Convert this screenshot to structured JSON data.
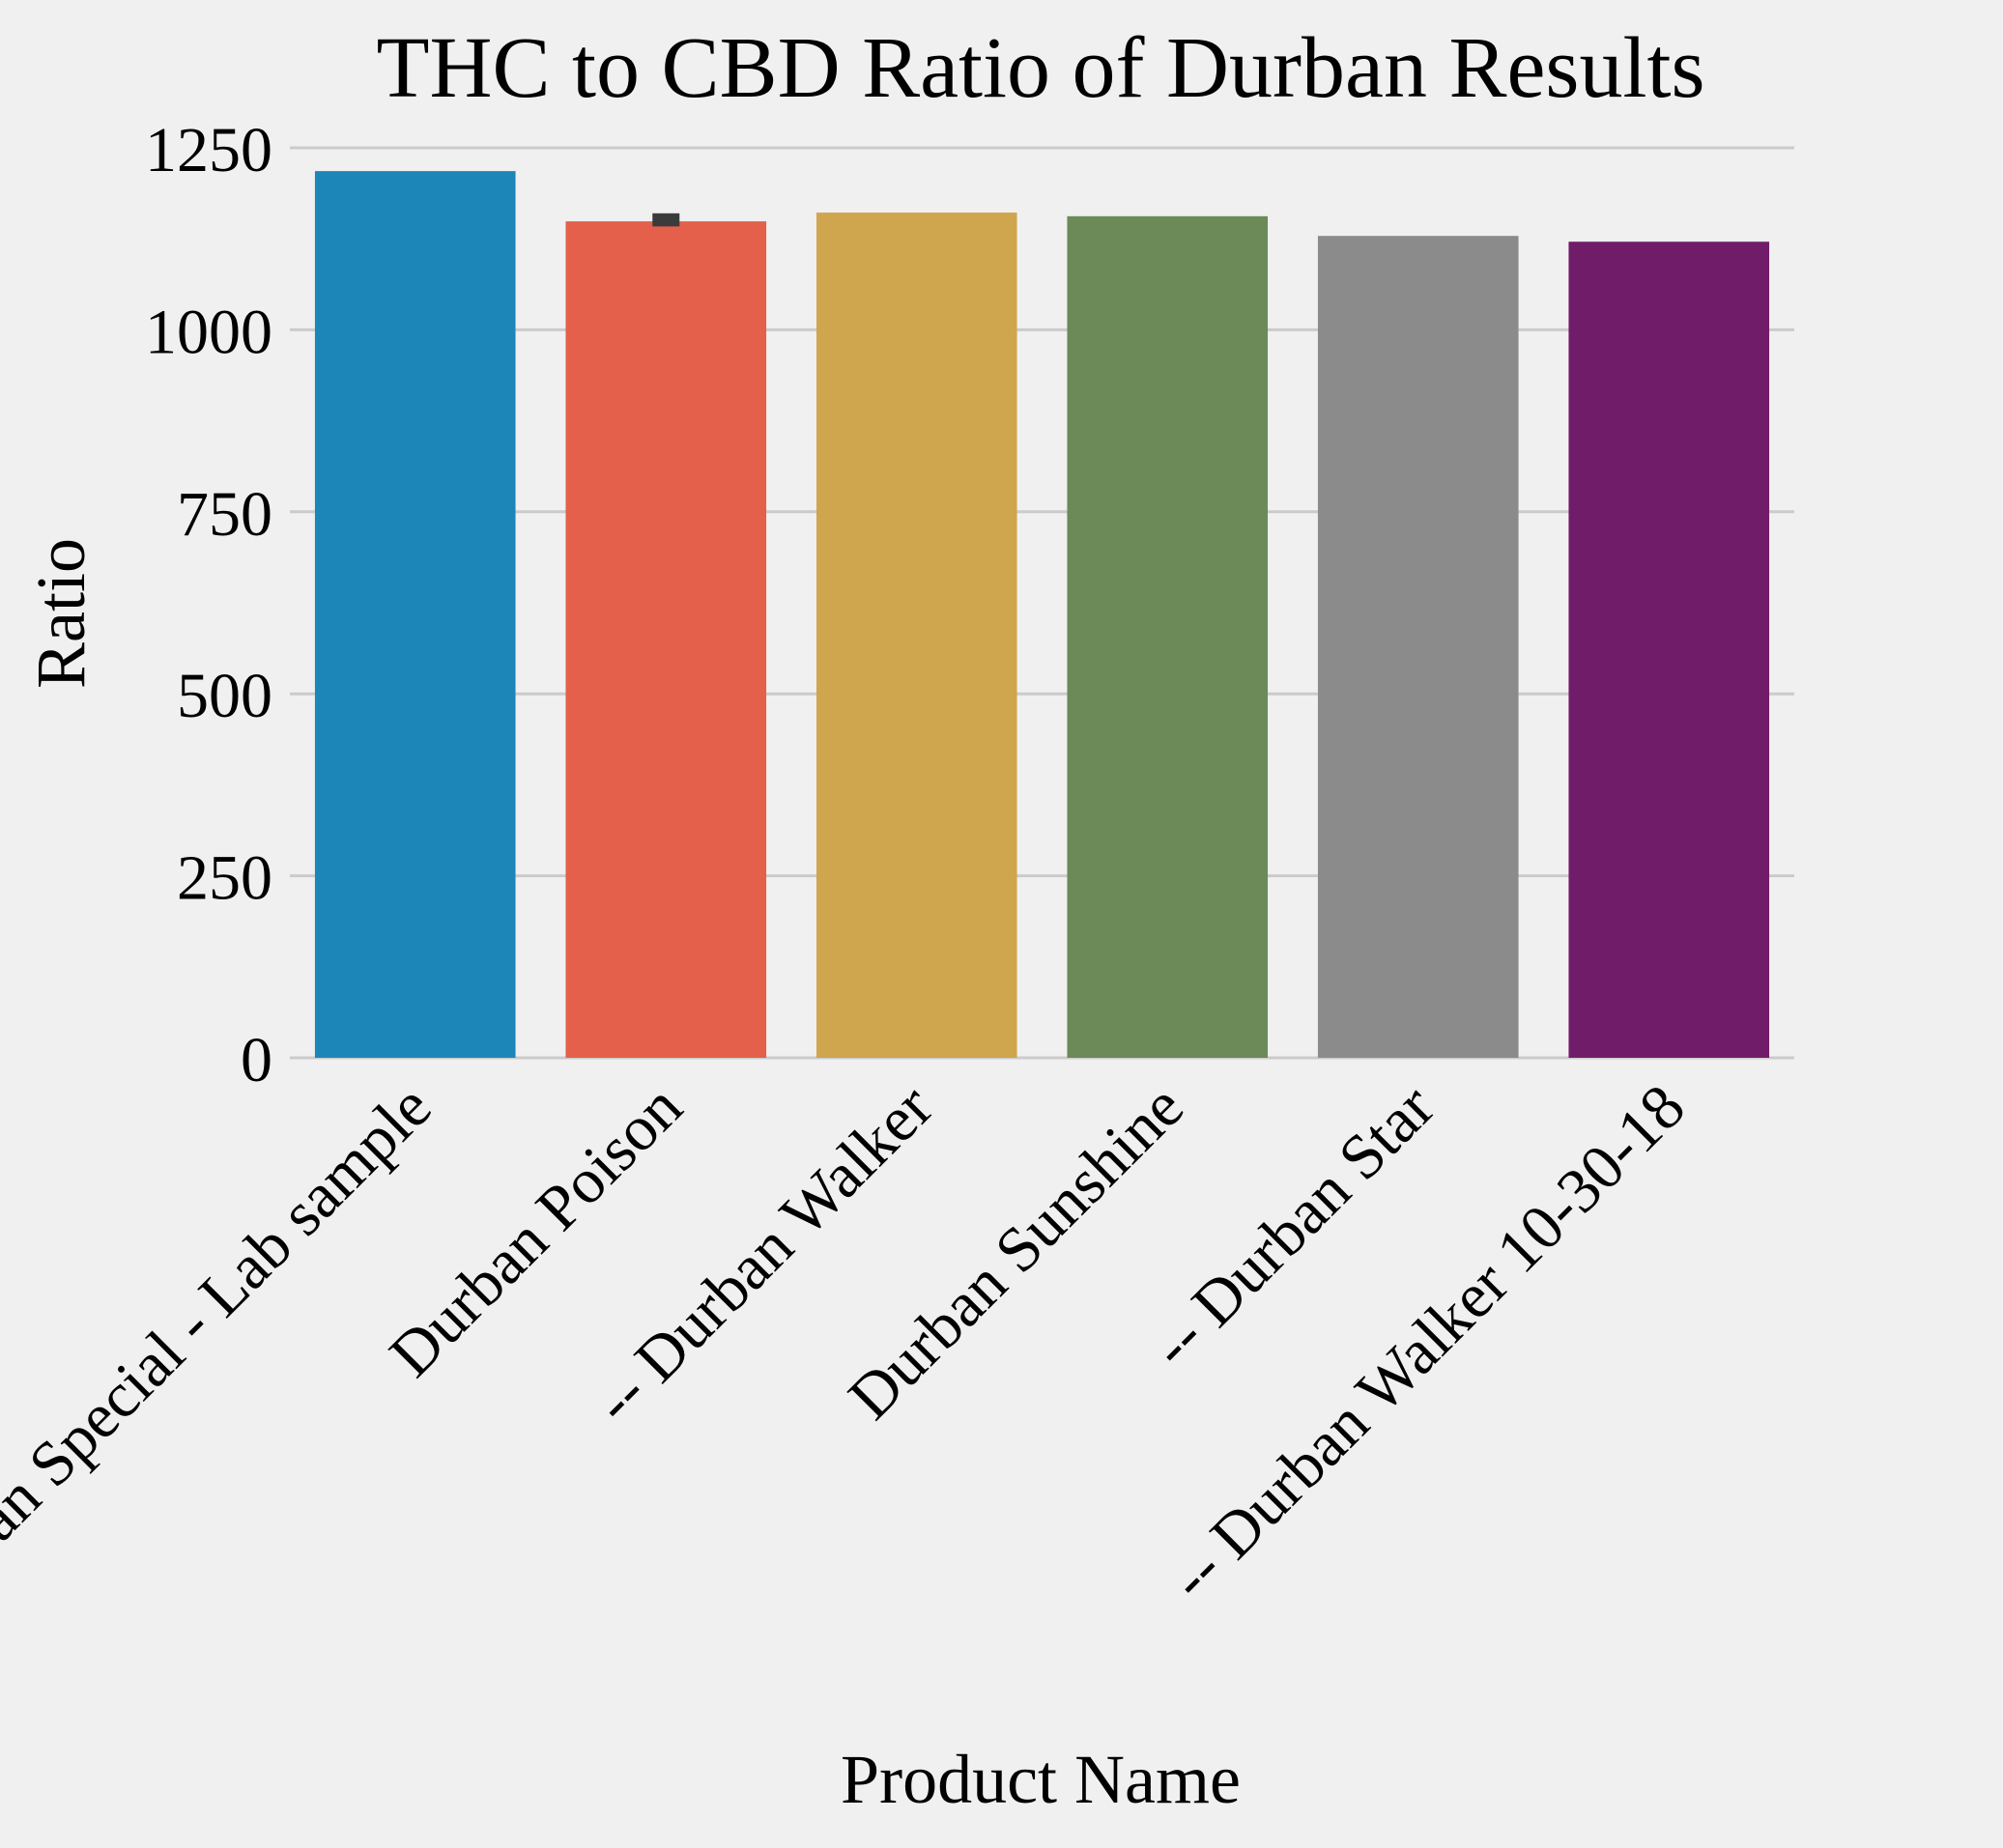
{
  "chart_data": {
    "type": "bar",
    "title": "THC to CBD Ratio of Durban Results",
    "xlabel": "Product Name",
    "ylabel": "Ratio",
    "categories": [
      "Durban Special - Lab sample",
      "Durban Poison",
      "-- Durban Walker",
      "Durban Sunshine",
      "-- Durban Star",
      "-- Durban Walker 10-30-18"
    ],
    "values": [
      1218,
      1149,
      1161,
      1156,
      1129,
      1121
    ],
    "error_bars": [
      null,
      {
        "low": 1142,
        "high": 1160
      },
      null,
      null,
      null,
      null
    ],
    "colors": [
      "#1c86b9",
      "#e4604a",
      "#cfa54e",
      "#6c8958",
      "#8b8b8b",
      "#711c69"
    ],
    "error_bar_color": "#3b3b3b",
    "ylim": [
      0,
      1250
    ],
    "yticks": [
      0,
      250,
      500,
      750,
      1000,
      1250
    ],
    "grid": "y"
  }
}
